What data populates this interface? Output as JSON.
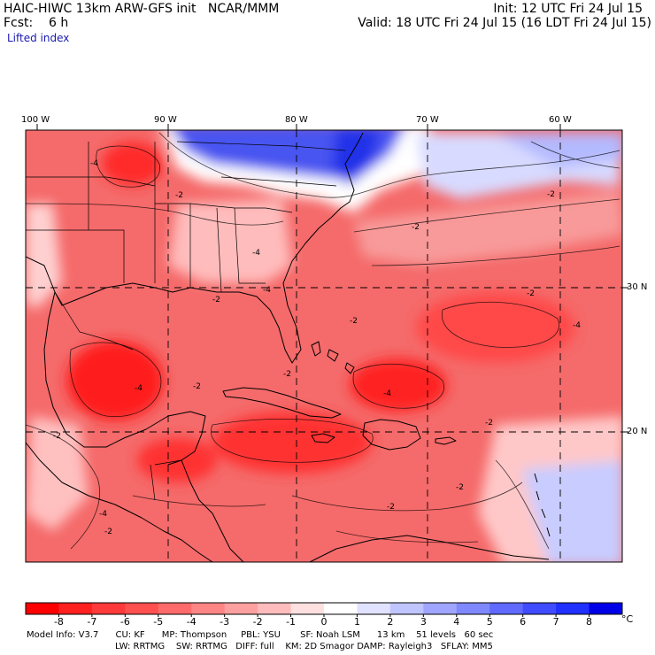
{
  "header": {
    "model_line": "HAIC-HIWC 13km ARW-GFS init   NCAR/MMM",
    "init_line": "Init: 12 UTC Fri 24 Jul 15",
    "fcst_line": "Fcst:    6 h",
    "valid_line": "Valid: 18 UTC Fri 24 Jul 15 (16 LDT Fri 24 Jul 15)",
    "field_name": "Lifted index"
  },
  "map": {
    "lon_labels": [
      "100 W",
      "90 W",
      "80 W",
      "70 W",
      "60 W"
    ],
    "lat_labels": [
      "30 N",
      "20 N"
    ],
    "contour_labels": [
      "-4",
      "-2",
      "-4",
      "-2",
      "-4",
      "-2",
      "-2",
      "-2",
      "-4",
      "-2",
      "-4",
      "-2",
      "-4",
      "-2",
      "-2",
      "-2",
      "-2",
      "-2",
      "-2",
      "-4"
    ],
    "colors": {
      "strong_negative": "#ff1010",
      "mid_negative": "#f56060",
      "weak_negative": "#ffc8c8",
      "neutral": "#ffffff",
      "weak_positive": "#c8ccff",
      "strong_positive": "#1e1ee8"
    }
  },
  "colorbar": {
    "unit": "°C",
    "ticks": [
      "-8",
      "-7",
      "-6",
      "-5",
      "-4",
      "-3",
      "-2",
      "-1",
      "0",
      "1",
      "2",
      "3",
      "4",
      "5",
      "6",
      "7",
      "8"
    ],
    "colors": [
      "#ff0000",
      "#ff2020",
      "#ff3a3a",
      "#ff5050",
      "#ff6a6a",
      "#ff8484",
      "#ffa0a0",
      "#ffbcbc",
      "#ffe0e0",
      "#ffffff",
      "#e0e2ff",
      "#c0c4ff",
      "#a0a6ff",
      "#8088ff",
      "#606aff",
      "#404cff",
      "#2030ff",
      "#0000e8"
    ]
  },
  "footer": {
    "line1": "Model Info: V3.7      CU: KF      MP: Thompson     PBL: YSU       SF: Noah LSM      13 km    51 levels   60 sec",
    "line2": "LW: RRTMG    SW: RRTMG   DIFF: full    KM: 2D Smagor DAMP: Rayleigh3   SFLAY: MM5"
  }
}
